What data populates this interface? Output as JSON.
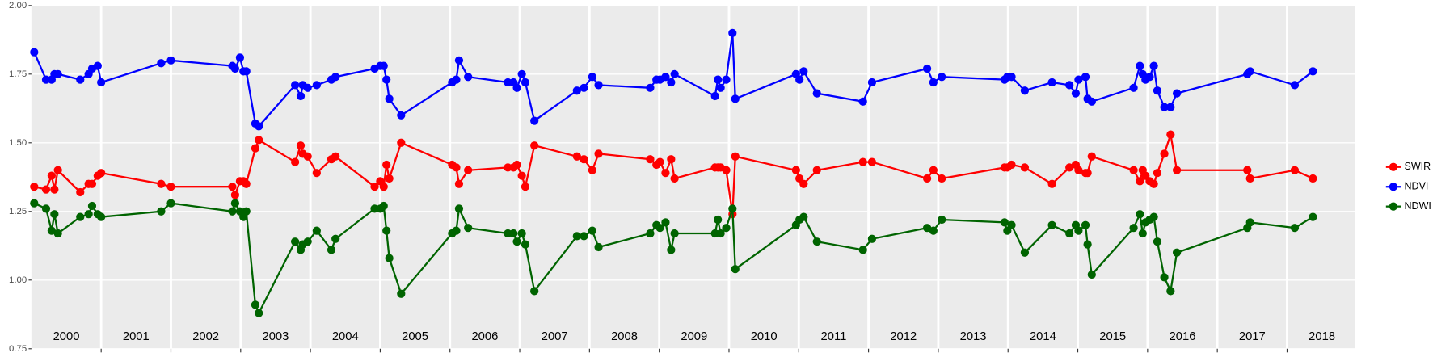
{
  "chart_data": {
    "type": "line",
    "x": [
      2000.04,
      2000.21,
      2000.29,
      2000.33,
      2000.38,
      2000.7,
      2000.82,
      2000.87,
      2000.95,
      2001.0,
      2001.86,
      2002.0,
      2002.88,
      2002.92,
      2002.99,
      2003.04,
      2003.08,
      2003.21,
      2003.26,
      2003.78,
      2003.86,
      2003.89,
      2003.96,
      2004.09,
      2004.3,
      2004.36,
      2004.92,
      2005.0,
      2005.05,
      2005.09,
      2005.13,
      2005.3,
      2006.03,
      2006.09,
      2006.13,
      2006.26,
      2006.83,
      2006.91,
      2006.96,
      2007.03,
      2007.08,
      2007.21,
      2007.82,
      2007.92,
      2008.04,
      2008.13,
      2008.87,
      2008.96,
      2009.01,
      2009.09,
      2009.17,
      2009.22,
      2009.8,
      2009.84,
      2009.88,
      2009.96,
      2010.05,
      2010.09,
      2010.96,
      2011.01,
      2011.07,
      2011.26,
      2011.92,
      2012.05,
      2012.84,
      2012.93,
      2013.05,
      2013.95,
      2013.99,
      2014.05,
      2014.24,
      2014.63,
      2014.88,
      2014.97,
      2015.01,
      2015.11,
      2015.14,
      2015.2,
      2015.8,
      2015.89,
      2015.93,
      2015.97,
      2016.03,
      2016.09,
      2016.14,
      2016.24,
      2016.33,
      2016.42,
      2017.43,
      2017.47,
      2018.11,
      2018.37
    ],
    "series": [
      {
        "name": "SWIR",
        "color": "#ff0000",
        "values": [
          1.34,
          1.33,
          1.38,
          1.33,
          1.4,
          1.32,
          1.35,
          1.35,
          1.38,
          1.39,
          1.35,
          1.34,
          1.34,
          1.31,
          1.36,
          1.36,
          1.35,
          1.48,
          1.51,
          1.43,
          1.49,
          1.46,
          1.45,
          1.39,
          1.44,
          1.45,
          1.34,
          1.36,
          1.34,
          1.42,
          1.37,
          1.5,
          1.42,
          1.41,
          1.35,
          1.4,
          1.41,
          1.41,
          1.42,
          1.38,
          1.34,
          1.49,
          1.45,
          1.44,
          1.4,
          1.46,
          1.44,
          1.42,
          1.43,
          1.39,
          1.44,
          1.37,
          1.41,
          1.41,
          1.41,
          1.4,
          1.24,
          1.45,
          1.4,
          1.37,
          1.35,
          1.4,
          1.43,
          1.43,
          1.37,
          1.4,
          1.37,
          1.41,
          1.41,
          1.42,
          1.41,
          1.35,
          1.41,
          1.42,
          1.4,
          1.39,
          1.39,
          1.45,
          1.4,
          1.36,
          1.4,
          1.38,
          1.36,
          1.35,
          1.39,
          1.46,
          1.53,
          1.4,
          1.4,
          1.37,
          1.4,
          1.37
        ]
      },
      {
        "name": "NDVI",
        "color": "#0000ff",
        "values": [
          1.83,
          1.73,
          1.73,
          1.75,
          1.75,
          1.73,
          1.75,
          1.77,
          1.78,
          1.72,
          1.79,
          1.8,
          1.78,
          1.77,
          1.81,
          1.76,
          1.76,
          1.57,
          1.56,
          1.71,
          1.67,
          1.71,
          1.7,
          1.71,
          1.73,
          1.74,
          1.77,
          1.78,
          1.78,
          1.73,
          1.66,
          1.6,
          1.72,
          1.73,
          1.8,
          1.74,
          1.72,
          1.72,
          1.7,
          1.75,
          1.72,
          1.58,
          1.69,
          1.7,
          1.74,
          1.71,
          1.7,
          1.73,
          1.73,
          1.74,
          1.72,
          1.75,
          1.67,
          1.73,
          1.7,
          1.73,
          1.9,
          1.66,
          1.75,
          1.73,
          1.76,
          1.68,
          1.65,
          1.72,
          1.77,
          1.72,
          1.74,
          1.73,
          1.74,
          1.74,
          1.69,
          1.72,
          1.71,
          1.68,
          1.73,
          1.74,
          1.66,
          1.65,
          1.7,
          1.78,
          1.75,
          1.73,
          1.74,
          1.78,
          1.69,
          1.63,
          1.63,
          1.68,
          1.75,
          1.76,
          1.71,
          1.76
        ]
      },
      {
        "name": "NDWI",
        "color": "#006400",
        "values": [
          1.28,
          1.26,
          1.18,
          1.24,
          1.17,
          1.23,
          1.24,
          1.27,
          1.24,
          1.23,
          1.25,
          1.28,
          1.25,
          1.28,
          1.25,
          1.23,
          1.25,
          0.91,
          0.88,
          1.14,
          1.11,
          1.13,
          1.14,
          1.18,
          1.11,
          1.15,
          1.26,
          1.26,
          1.27,
          1.18,
          1.08,
          0.95,
          1.17,
          1.18,
          1.26,
          1.19,
          1.17,
          1.17,
          1.14,
          1.17,
          1.13,
          0.96,
          1.16,
          1.16,
          1.18,
          1.12,
          1.17,
          1.2,
          1.19,
          1.21,
          1.11,
          1.17,
          1.17,
          1.22,
          1.17,
          1.19,
          1.26,
          1.04,
          1.2,
          1.22,
          1.23,
          1.14,
          1.11,
          1.15,
          1.19,
          1.18,
          1.22,
          1.21,
          1.18,
          1.2,
          1.1,
          1.2,
          1.17,
          1.2,
          1.18,
          1.2,
          1.13,
          1.02,
          1.19,
          1.24,
          1.17,
          1.21,
          1.22,
          1.23,
          1.14,
          1.01,
          0.96,
          1.1,
          1.19,
          1.21,
          1.19,
          1.23
        ]
      }
    ],
    "xlim": [
      2000,
      2018.97
    ],
    "xticks": [
      {
        "value": 2000.5,
        "label": "2000"
      },
      {
        "value": 2001.5,
        "label": "2001"
      },
      {
        "value": 2002.5,
        "label": "2002"
      },
      {
        "value": 2003.5,
        "label": "2003"
      },
      {
        "value": 2004.5,
        "label": "2004"
      },
      {
        "value": 2005.5,
        "label": "2005"
      },
      {
        "value": 2006.5,
        "label": "2006"
      },
      {
        "value": 2007.5,
        "label": "2007"
      },
      {
        "value": 2008.5,
        "label": "2008"
      },
      {
        "value": 2009.5,
        "label": "2009"
      },
      {
        "value": 2010.5,
        "label": "2010"
      },
      {
        "value": 2011.5,
        "label": "2011"
      },
      {
        "value": 2012.5,
        "label": "2012"
      },
      {
        "value": 2013.5,
        "label": "2013"
      },
      {
        "value": 2014.5,
        "label": "2014"
      },
      {
        "value": 2015.5,
        "label": "2015"
      },
      {
        "value": 2016.5,
        "label": "2016"
      },
      {
        "value": 2017.5,
        "label": "2017"
      },
      {
        "value": 2018.5,
        "label": "2018"
      }
    ],
    "xgrid": [
      2001,
      2002,
      2003,
      2004,
      2005,
      2006,
      2007,
      2008,
      2009,
      2010,
      2011,
      2012,
      2013,
      2014,
      2015,
      2016,
      2017,
      2018
    ],
    "ylim": [
      0.75,
      2.0
    ],
    "yticks": [
      {
        "value": 0.75,
        "label": "0.75"
      },
      {
        "value": 1.0,
        "label": "1.00"
      },
      {
        "value": 1.25,
        "label": "1.25"
      },
      {
        "value": 1.5,
        "label": "1.50"
      },
      {
        "value": 1.75,
        "label": "1.75"
      },
      {
        "value": 2.0,
        "label": "2.00"
      }
    ],
    "grid": true,
    "legend": "right"
  }
}
